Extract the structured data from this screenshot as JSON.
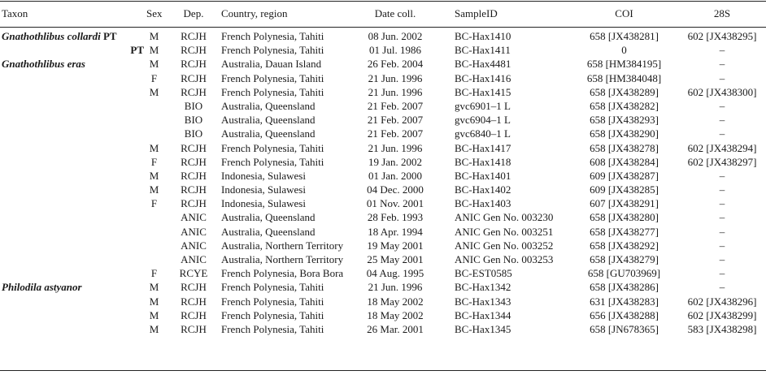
{
  "header": {
    "taxon": "Taxon",
    "sex": "Sex",
    "dep": "Dep.",
    "country": "Country, region",
    "date": "Date coll.",
    "sample": "SampleID",
    "coi": "COI",
    "s28": "28S"
  },
  "rows": [
    {
      "taxon": "Gnathothlibus collardi",
      "pt": "PT",
      "taxon_align": "left",
      "sex": "M",
      "dep": "RCJH",
      "country": "French Polynesia, Tahiti",
      "date": "08 Jun. 2002",
      "sample": "BC-Hax1410",
      "coi": "658 [JX438281]",
      "s28": "602 [JX438295]"
    },
    {
      "taxon": "",
      "pt": "PT",
      "taxon_align": "right",
      "sex": "M",
      "dep": "RCJH",
      "country": "French Polynesia, Tahiti",
      "date": "01 Jul. 1986",
      "sample": "BC-Hax1411",
      "coi": "0",
      "s28": "–"
    },
    {
      "taxon": "Gnathothlibus eras",
      "pt": "",
      "taxon_align": "left",
      "sex": "M",
      "dep": "RCJH",
      "country": "Australia, Dauan Island",
      "date": "26 Feb. 2004",
      "sample": "BC-Hax4481",
      "coi": "658 [HM384195]",
      "s28": "–"
    },
    {
      "taxon": "",
      "pt": "",
      "taxon_align": "left",
      "sex": "F",
      "dep": "RCJH",
      "country": "French Polynesia, Tahiti",
      "date": "21 Jun. 1996",
      "sample": "BC-Hax1416",
      "coi": "658 [HM384048]",
      "s28": "–"
    },
    {
      "taxon": "",
      "pt": "",
      "taxon_align": "left",
      "sex": "M",
      "dep": "RCJH",
      "country": "French Polynesia, Tahiti",
      "date": "21 Jun. 1996",
      "sample": "BC-Hax1415",
      "coi": "658 [JX438289]",
      "s28": "602 [JX438300]"
    },
    {
      "taxon": "",
      "pt": "",
      "taxon_align": "left",
      "sex": "",
      "dep": "BIO",
      "country": "Australia, Queensland",
      "date": "21 Feb. 2007",
      "sample": "gvc6901–1 L",
      "coi": "658 [JX438282]",
      "s28": "–"
    },
    {
      "taxon": "",
      "pt": "",
      "taxon_align": "left",
      "sex": "",
      "dep": "BIO",
      "country": "Australia, Queensland",
      "date": "21 Feb. 2007",
      "sample": "gvc6904–1 L",
      "coi": "658 [JX438293]",
      "s28": "–"
    },
    {
      "taxon": "",
      "pt": "",
      "taxon_align": "left",
      "sex": "",
      "dep": "BIO",
      "country": "Australia, Queensland",
      "date": "21 Feb. 2007",
      "sample": "gvc6840–1 L",
      "coi": "658 [JX438290]",
      "s28": "–"
    },
    {
      "taxon": "",
      "pt": "",
      "taxon_align": "left",
      "sex": "M",
      "dep": "RCJH",
      "country": "French Polynesia, Tahiti",
      "date": "21 Jun. 1996",
      "sample": "BC-Hax1417",
      "coi": "658 [JX438278]",
      "s28": "602 [JX438294]"
    },
    {
      "taxon": "",
      "pt": "",
      "taxon_align": "left",
      "sex": "F",
      "dep": "RCJH",
      "country": "French Polynesia, Tahiti",
      "date": "19 Jan. 2002",
      "sample": "BC-Hax1418",
      "coi": "608 [JX438284]",
      "s28": "602 [JX438297]"
    },
    {
      "taxon": "",
      "pt": "",
      "taxon_align": "left",
      "sex": "M",
      "dep": "RCJH",
      "country": "Indonesia, Sulawesi",
      "date": "01 Jan. 2000",
      "sample": "BC-Hax1401",
      "coi": "609 [JX438287]",
      "s28": "–"
    },
    {
      "taxon": "",
      "pt": "",
      "taxon_align": "left",
      "sex": "M",
      "dep": "RCJH",
      "country": "Indonesia, Sulawesi",
      "date": "04 Dec. 2000",
      "sample": "BC-Hax1402",
      "coi": "609 [JX438285]",
      "s28": "–"
    },
    {
      "taxon": "",
      "pt": "",
      "taxon_align": "left",
      "sex": "F",
      "dep": "RCJH",
      "country": "Indonesia, Sulawesi",
      "date": "01 Nov. 2001",
      "sample": "BC-Hax1403",
      "coi": "607 [JX438291]",
      "s28": "–"
    },
    {
      "taxon": "",
      "pt": "",
      "taxon_align": "left",
      "sex": "",
      "dep": "ANIC",
      "country": "Australia, Queensland",
      "date": "28 Feb. 1993",
      "sample": "ANIC Gen No. 003230",
      "coi": "658 [JX438280]",
      "s28": "–"
    },
    {
      "taxon": "",
      "pt": "",
      "taxon_align": "left",
      "sex": "",
      "dep": "ANIC",
      "country": "Australia, Queensland",
      "date": "18 Apr. 1994",
      "sample": "ANIC Gen No. 003251",
      "coi": "658 [JX438277]",
      "s28": "–"
    },
    {
      "taxon": "",
      "pt": "",
      "taxon_align": "left",
      "sex": "",
      "dep": "ANIC",
      "country": "Australia, Northern Territory",
      "date": "19 May 2001",
      "sample": "ANIC Gen No. 003252",
      "coi": "658 [JX438292]",
      "s28": "–"
    },
    {
      "taxon": "",
      "pt": "",
      "taxon_align": "left",
      "sex": "",
      "dep": "ANIC",
      "country": "Australia, Northern Territory",
      "date": "25 May 2001",
      "sample": "ANIC Gen No. 003253",
      "coi": "658 [JX438279]",
      "s28": "–"
    },
    {
      "taxon": "",
      "pt": "",
      "taxon_align": "left",
      "sex": "F",
      "dep": "RCYE",
      "country": "French Polynesia, Bora Bora",
      "date": "04 Aug. 1995",
      "sample": "BC-EST0585",
      "coi": "658 [GU703969]",
      "s28": "–"
    },
    {
      "taxon": "Philodila astyanor",
      "pt": "",
      "taxon_align": "left",
      "sex": "M",
      "dep": "RCJH",
      "country": "French Polynesia, Tahiti",
      "date": "21 Jun. 1996",
      "sample": "BC-Hax1342",
      "coi": "658 [JX438286]",
      "s28": "–"
    },
    {
      "taxon": "",
      "pt": "",
      "taxon_align": "left",
      "sex": "M",
      "dep": "RCJH",
      "country": "French Polynesia, Tahiti",
      "date": "18 May 2002",
      "sample": "BC-Hax1343",
      "coi": "631 [JX438283]",
      "s28": "602 [JX438296]"
    },
    {
      "taxon": "",
      "pt": "",
      "taxon_align": "left",
      "sex": "M",
      "dep": "RCJH",
      "country": "French Polynesia, Tahiti",
      "date": "18 May 2002",
      "sample": "BC-Hax1344",
      "coi": "656 [JX438288]",
      "s28": "602 [JX438299]"
    },
    {
      "taxon": "",
      "pt": "",
      "taxon_align": "left",
      "sex": "M",
      "dep": "RCJH",
      "country": "French Polynesia, Tahiti",
      "date": "26 Mar. 2001",
      "sample": "BC-Hax1345",
      "coi": "658 [JN678365]",
      "s28": "583 [JX438298]"
    }
  ]
}
